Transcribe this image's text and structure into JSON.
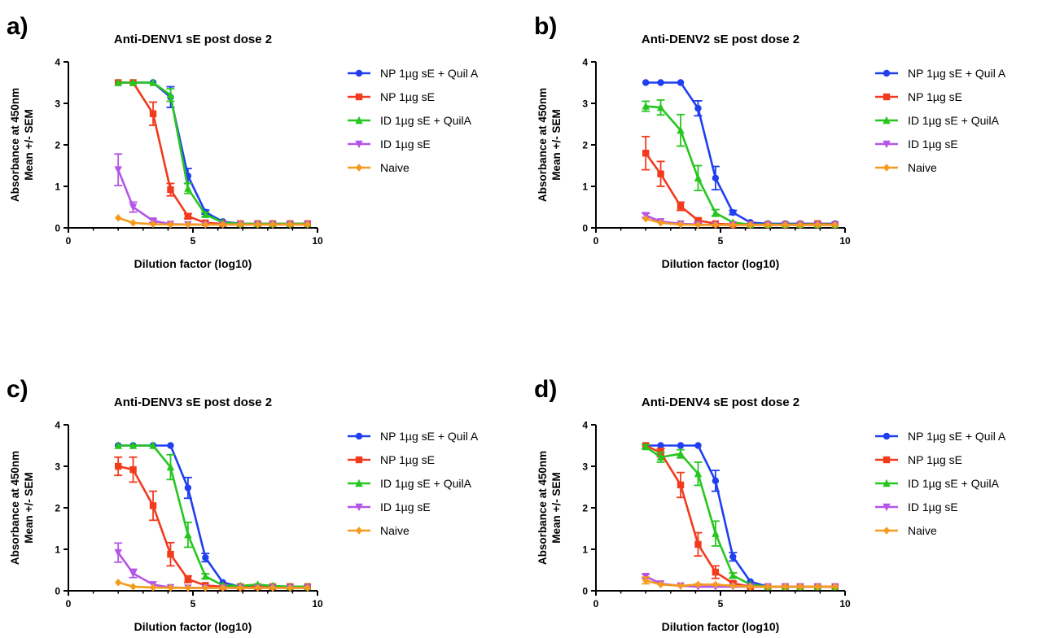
{
  "series_meta": [
    {
      "name": "NP 1µg sE + Quil A",
      "color": "#1f3ff0",
      "marker": "circle"
    },
    {
      "name": "NP 1µg sE",
      "color": "#f23a1c",
      "marker": "square"
    },
    {
      "name": "ID 1µg sE + QuilA",
      "color": "#27c61f",
      "marker": "triangle-up"
    },
    {
      "name": "ID 1µg sE",
      "color": "#b455e8",
      "marker": "triangle-down"
    },
    {
      "name": "Naive",
      "color": "#f59a1c",
      "marker": "diamond"
    }
  ],
  "chart_data": [
    {
      "panel_label": "a)",
      "type": "line",
      "title": "Anti-DENV1 sE post dose 2",
      "xlabel": "Dilution factor (log10)",
      "ylabel": [
        "Absorbance at 450nm",
        "Mean +/- SEM"
      ],
      "xlim": [
        0,
        10
      ],
      "ylim": [
        0,
        4
      ],
      "xticks": [
        0,
        5,
        10
      ],
      "yticks": [
        0,
        1,
        2,
        3,
        4
      ],
      "grid": false,
      "legend": "right",
      "x": [
        2.0,
        2.6,
        3.4,
        4.1,
        4.8,
        5.5,
        6.2,
        6.9,
        7.6,
        8.2,
        8.9,
        9.6
      ],
      "series": [
        {
          "name": "NP 1µg sE + Quil A",
          "values": [
            3.5,
            3.5,
            3.5,
            3.15,
            1.25,
            0.38,
            0.15,
            0.1,
            0.1,
            0.1,
            0.1,
            0.1
          ],
          "error": [
            0,
            0,
            0,
            0.25,
            0.18,
            0.05,
            0.02,
            0.01,
            0.01,
            0.01,
            0.01,
            0.01
          ]
        },
        {
          "name": "NP 1µg sE",
          "values": [
            3.5,
            3.5,
            2.75,
            0.92,
            0.28,
            0.12,
            0.1,
            0.1,
            0.1,
            0.1,
            0.1,
            0.1
          ],
          "error": [
            0,
            0,
            0.28,
            0.15,
            0.06,
            0.03,
            0.01,
            0.01,
            0.01,
            0.01,
            0.01,
            0.01
          ]
        },
        {
          "name": "ID 1µg sE + QuilA",
          "values": [
            3.5,
            3.5,
            3.5,
            3.2,
            0.95,
            0.32,
            0.13,
            0.1,
            0.1,
            0.1,
            0.1,
            0.1
          ],
          "error": [
            0,
            0,
            0,
            0.15,
            0.12,
            0.05,
            0.02,
            0.01,
            0.01,
            0.01,
            0.01,
            0.01
          ]
        },
        {
          "name": "ID 1µg sE",
          "values": [
            1.4,
            0.5,
            0.17,
            0.09,
            0.08,
            0.08,
            0.08,
            0.08,
            0.08,
            0.08,
            0.08,
            0.08
          ],
          "error": [
            0.38,
            0.12,
            0.04,
            0.02,
            0.01,
            0.01,
            0.01,
            0.01,
            0.01,
            0.01,
            0.01,
            0.01
          ]
        },
        {
          "name": "Naive",
          "values": [
            0.24,
            0.12,
            0.09,
            0.08,
            0.08,
            0.08,
            0.08,
            0.08,
            0.08,
            0.08,
            0.08,
            0.08
          ],
          "error": [
            0.03,
            0.02,
            0.01,
            0.01,
            0.01,
            0.01,
            0.01,
            0.01,
            0.01,
            0.01,
            0.01,
            0.01
          ]
        }
      ]
    },
    {
      "panel_label": "b)",
      "type": "line",
      "title": "Anti-DENV2 sE post dose 2",
      "xlabel": "Dilution factor (log10)",
      "ylabel": [
        "Absorbance at 450nm",
        "Mean +/- SEM"
      ],
      "xlim": [
        0,
        10
      ],
      "ylim": [
        0,
        4
      ],
      "xticks": [
        0,
        5,
        10
      ],
      "yticks": [
        0,
        1,
        2,
        3,
        4
      ],
      "grid": false,
      "legend": "right",
      "x": [
        2.0,
        2.6,
        3.4,
        4.1,
        4.8,
        5.5,
        6.2,
        6.9,
        7.6,
        8.2,
        8.9,
        9.6
      ],
      "series": [
        {
          "name": "NP 1µg sE + Quil A",
          "values": [
            3.5,
            3.5,
            3.5,
            2.88,
            1.2,
            0.37,
            0.13,
            0.1,
            0.1,
            0.1,
            0.1,
            0.1
          ],
          "error": [
            0,
            0,
            0,
            0.18,
            0.28,
            0.05,
            0.02,
            0.01,
            0.01,
            0.01,
            0.01,
            0.01
          ]
        },
        {
          "name": "NP 1µg sE",
          "values": [
            1.8,
            1.3,
            0.52,
            0.18,
            0.1,
            0.08,
            0.08,
            0.08,
            0.08,
            0.08,
            0.1,
            0.08
          ],
          "error": [
            0.4,
            0.3,
            0.1,
            0.05,
            0.02,
            0.01,
            0.01,
            0.01,
            0.01,
            0.01,
            0.01,
            0.01
          ]
        },
        {
          "name": "ID 1µg sE + QuilA",
          "values": [
            2.93,
            2.9,
            2.35,
            1.2,
            0.36,
            0.13,
            0.08,
            0.08,
            0.08,
            0.08,
            0.08,
            0.08
          ],
          "error": [
            0.12,
            0.18,
            0.38,
            0.3,
            0.08,
            0.03,
            0.01,
            0.01,
            0.01,
            0.01,
            0.01,
            0.01
          ]
        },
        {
          "name": "ID 1µg sE",
          "values": [
            0.3,
            0.15,
            0.1,
            0.08,
            0.07,
            0.07,
            0.07,
            0.07,
            0.07,
            0.07,
            0.07,
            0.07
          ],
          "error": [
            0.05,
            0.03,
            0.02,
            0.01,
            0.01,
            0.01,
            0.01,
            0.01,
            0.01,
            0.01,
            0.01,
            0.01
          ]
        },
        {
          "name": "Naive",
          "values": [
            0.22,
            0.12,
            0.08,
            0.07,
            0.07,
            0.07,
            0.07,
            0.07,
            0.07,
            0.07,
            0.07,
            0.07
          ],
          "error": [
            0.03,
            0.02,
            0.01,
            0.01,
            0.01,
            0.01,
            0.01,
            0.01,
            0.01,
            0.01,
            0.01,
            0.01
          ]
        }
      ]
    },
    {
      "panel_label": "c)",
      "type": "line",
      "title": "Anti-DENV3 sE post dose 2",
      "xlabel": "Dilution factor (log10)",
      "ylabel": [
        "Absorbance at 450nm",
        "Mean +/- SEM"
      ],
      "xlim": [
        0,
        10
      ],
      "ylim": [
        0,
        4
      ],
      "xticks": [
        0,
        5,
        10
      ],
      "yticks": [
        0,
        1,
        2,
        3,
        4
      ],
      "grid": false,
      "legend": "right",
      "x": [
        2.0,
        2.6,
        3.4,
        4.1,
        4.8,
        5.5,
        6.2,
        6.9,
        7.6,
        8.2,
        8.9,
        9.6
      ],
      "series": [
        {
          "name": "NP 1µg sE + Quil A",
          "values": [
            3.5,
            3.5,
            3.5,
            3.5,
            2.48,
            0.8,
            0.2,
            0.1,
            0.1,
            0.1,
            0.1,
            0.1
          ],
          "error": [
            0,
            0,
            0,
            0,
            0.25,
            0.1,
            0.03,
            0.01,
            0.01,
            0.01,
            0.01,
            0.01
          ]
        },
        {
          "name": "NP 1µg sE",
          "values": [
            3.0,
            2.92,
            2.05,
            0.88,
            0.28,
            0.13,
            0.1,
            0.1,
            0.1,
            0.1,
            0.1,
            0.1
          ],
          "error": [
            0.22,
            0.3,
            0.35,
            0.28,
            0.08,
            0.03,
            0.01,
            0.01,
            0.01,
            0.01,
            0.01,
            0.01
          ]
        },
        {
          "name": "ID 1µg sE + QuilA",
          "values": [
            3.5,
            3.5,
            3.5,
            2.98,
            1.35,
            0.35,
            0.13,
            0.12,
            0.15,
            0.12,
            0.1,
            0.1
          ],
          "error": [
            0,
            0,
            0,
            0.3,
            0.3,
            0.06,
            0.02,
            0.02,
            0.02,
            0.02,
            0.01,
            0.01
          ]
        },
        {
          "name": "ID 1µg sE",
          "values": [
            0.92,
            0.42,
            0.15,
            0.08,
            0.07,
            0.07,
            0.07,
            0.07,
            0.07,
            0.07,
            0.07,
            0.07
          ],
          "error": [
            0.23,
            0.1,
            0.03,
            0.01,
            0.01,
            0.01,
            0.01,
            0.01,
            0.01,
            0.01,
            0.01,
            0.01
          ]
        },
        {
          "name": "Naive",
          "values": [
            0.2,
            0.1,
            0.08,
            0.07,
            0.07,
            0.07,
            0.07,
            0.07,
            0.07,
            0.07,
            0.07,
            0.07
          ],
          "error": [
            0.03,
            0.02,
            0.01,
            0.01,
            0.01,
            0.01,
            0.01,
            0.01,
            0.01,
            0.01,
            0.01,
            0.01
          ]
        }
      ]
    },
    {
      "panel_label": "d)",
      "type": "line",
      "title": "Anti-DENV4 sE post dose 2",
      "xlabel": "Dilution factor (log10)",
      "ylabel": [
        "Absorbance at 450nm",
        "Mean +/- SEM"
      ],
      "xlim": [
        0,
        10
      ],
      "ylim": [
        0,
        4
      ],
      "xticks": [
        0,
        5,
        10
      ],
      "yticks": [
        0,
        1,
        2,
        3,
        4
      ],
      "grid": false,
      "legend": "right",
      "x": [
        2.0,
        2.6,
        3.4,
        4.1,
        4.8,
        5.5,
        6.2,
        6.9,
        7.6,
        8.2,
        8.9,
        9.6
      ],
      "series": [
        {
          "name": "NP 1µg sE + Quil A",
          "values": [
            3.5,
            3.5,
            3.5,
            3.5,
            2.65,
            0.82,
            0.22,
            0.1,
            0.1,
            0.1,
            0.1,
            0.1
          ],
          "error": [
            0,
            0,
            0,
            0,
            0.25,
            0.1,
            0.03,
            0.01,
            0.01,
            0.01,
            0.01,
            0.01
          ]
        },
        {
          "name": "NP 1µg sE",
          "values": [
            3.5,
            3.33,
            2.55,
            1.12,
            0.45,
            0.18,
            0.1,
            0.1,
            0.1,
            0.1,
            0.1,
            0.1
          ],
          "error": [
            0,
            0.1,
            0.3,
            0.28,
            0.15,
            0.04,
            0.01,
            0.01,
            0.01,
            0.01,
            0.01,
            0.01
          ]
        },
        {
          "name": "ID 1µg sE + QuilA",
          "values": [
            3.47,
            3.22,
            3.3,
            2.82,
            1.38,
            0.37,
            0.15,
            0.1,
            0.1,
            0.1,
            0.1,
            0.1
          ],
          "error": [
            0.05,
            0.12,
            0.1,
            0.28,
            0.3,
            0.06,
            0.02,
            0.01,
            0.01,
            0.01,
            0.01,
            0.01
          ]
        },
        {
          "name": "ID 1µg sE",
          "values": [
            0.35,
            0.17,
            0.12,
            0.1,
            0.1,
            0.1,
            0.1,
            0.1,
            0.1,
            0.1,
            0.1,
            0.1
          ],
          "error": [
            0.05,
            0.03,
            0.02,
            0.01,
            0.01,
            0.01,
            0.01,
            0.01,
            0.01,
            0.01,
            0.01,
            0.01
          ]
        },
        {
          "name": "Naive",
          "values": [
            0.25,
            0.15,
            0.12,
            0.15,
            0.15,
            0.12,
            0.1,
            0.1,
            0.1,
            0.1,
            0.1,
            0.1
          ],
          "error": [
            0.08,
            0.03,
            0.02,
            0.03,
            0.03,
            0.02,
            0.01,
            0.01,
            0.01,
            0.01,
            0.01,
            0.01
          ]
        }
      ]
    }
  ]
}
